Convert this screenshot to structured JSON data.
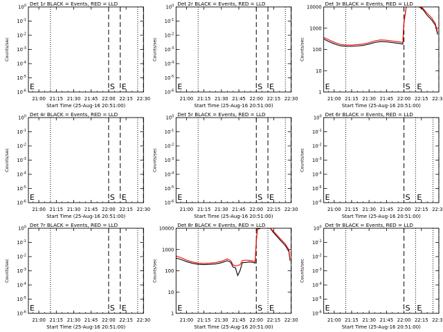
{
  "figure": {
    "bg_color": "#ffffff",
    "axis_color": "#000000",
    "series_colors": {
      "Events": "#000000",
      "LLD": "#ff0000"
    },
    "marker_labels": {
      "start": "S",
      "end": "E"
    }
  },
  "chart_data": [
    {
      "id": 1,
      "type": "line",
      "title": "Det 1r BLACK = Events, RED = LLD",
      "xlabel": "Start Time (25-Aug-16 20:51:00)",
      "ylabel": "Counts/sec",
      "xtick_labels": [
        "21:00",
        "21:15",
        "21:30",
        "21:45",
        "22:00",
        "22:15",
        "22:30"
      ],
      "ytick_labels": [
        "10^0",
        "10^-1",
        "10^-2",
        "10^-3",
        "10^-4",
        "10^-5",
        "10^-6"
      ],
      "ylim": [
        1e-06,
        1
      ],
      "yscale": "log",
      "dotted_lines": [
        "21:10",
        "22:25"
      ],
      "dashed_lines": [
        "22:00",
        "22:10",
        "22:30"
      ],
      "series": []
    },
    {
      "id": 2,
      "type": "line",
      "title": "Det 2r BLACK = Events, RED = LLD",
      "xlabel": "Start Time (25-Aug-16 20:51:00)",
      "ylabel": "Counts/sec",
      "xtick_labels": [
        "21:00",
        "21:15",
        "21:30",
        "21:45",
        "22:00",
        "22:15",
        "22:30"
      ],
      "ytick_labels": [
        "10^0",
        "10^-1",
        "10^-2",
        "10^-3",
        "10^-4",
        "10^-5",
        "10^-6"
      ],
      "ylim": [
        1e-06,
        1
      ],
      "yscale": "log",
      "dotted_lines": [
        "21:10",
        "22:25"
      ],
      "dashed_lines": [
        "22:00",
        "22:10",
        "22:30"
      ],
      "series": []
    },
    {
      "id": 3,
      "type": "line",
      "title": "Det 3r BLACK = Events, RED = LLD",
      "xlabel": "Start Time (25-Aug-16 20:51:00)",
      "ylabel": "Counts/sec",
      "xtick_labels": [
        "21:00",
        "21:15",
        "21:30",
        "21:45",
        "22:00",
        "22:15",
        "22:30"
      ],
      "ytick_labels": [
        "10000",
        "1000",
        "100",
        "10",
        "1"
      ],
      "ylim": [
        1,
        10000
      ],
      "yscale": "log",
      "dotted_lines": [
        "21:10",
        "22:10"
      ],
      "dashed_lines": [
        "22:00",
        "22:30"
      ],
      "series": [
        {
          "color": "#000000",
          "x": [
            "20:51",
            "20:55",
            "21:00",
            "21:05",
            "21:10",
            "21:15",
            "21:20",
            "21:25",
            "21:30",
            "21:35",
            "21:40",
            "21:45",
            "21:50",
            "21:55",
            "21:59",
            "22:00",
            "22:02",
            "22:05",
            "22:08",
            "22:10",
            "22:13",
            "22:16",
            "22:20",
            "22:24",
            "22:27",
            "22:29"
          ],
          "y": [
            310,
            240,
            185,
            150,
            140,
            140,
            145,
            155,
            180,
            215,
            235,
            230,
            210,
            195,
            180,
            1800,
            10000,
            10000,
            10000,
            10000,
            10000,
            8000,
            4000,
            2400,
            1400,
            500
          ]
        },
        {
          "color": "#ff0000",
          "x": [
            "20:51",
            "20:55",
            "21:00",
            "21:05",
            "21:10",
            "21:15",
            "21:20",
            "21:25",
            "21:30",
            "21:35",
            "21:40",
            "21:45",
            "21:50",
            "21:55",
            "21:59",
            "22:00",
            "22:02",
            "22:05",
            "22:08",
            "22:10",
            "22:13",
            "22:16",
            "22:20",
            "22:24",
            "22:27",
            "22:29"
          ],
          "y": [
            370,
            290,
            220,
            175,
            160,
            160,
            170,
            180,
            210,
            255,
            280,
            270,
            250,
            230,
            215,
            2100,
            10000,
            10000,
            10000,
            10000,
            10000,
            9000,
            5000,
            3000,
            1700,
            600
          ]
        }
      ]
    },
    {
      "id": 4,
      "type": "line",
      "title": "Det 4r BLACK = Events, RED = LLD",
      "xlabel": "Start Time (25-Aug-16 20:51:00)",
      "ylabel": "Counts/sec",
      "xtick_labels": [
        "21:00",
        "21:15",
        "21:30",
        "21:45",
        "22:00",
        "22:15",
        "22:30"
      ],
      "ytick_labels": [
        "10^0",
        "10^-1",
        "10^-2",
        "10^-3",
        "10^-4",
        "10^-5",
        "10^-6"
      ],
      "ylim": [
        1e-06,
        1
      ],
      "yscale": "log",
      "dotted_lines": [
        "21:10",
        "22:25"
      ],
      "dashed_lines": [
        "22:00",
        "22:10",
        "22:30"
      ],
      "series": []
    },
    {
      "id": 5,
      "type": "line",
      "title": "Det 5r BLACK = Events, RED = LLD",
      "xlabel": "Start Time (25-Aug-16 20:51:00)",
      "ylabel": "Counts/sec",
      "xtick_labels": [
        "21:00",
        "21:15",
        "21:30",
        "21:45",
        "22:00",
        "22:15",
        "22:30"
      ],
      "ytick_labels": [
        "10^0",
        "10^-1",
        "10^-2",
        "10^-3",
        "10^-4",
        "10^-5",
        "10^-6"
      ],
      "ylim": [
        1e-06,
        1
      ],
      "yscale": "log",
      "dotted_lines": [
        "21:10",
        "22:25"
      ],
      "dashed_lines": [
        "22:00",
        "22:10",
        "22:30"
      ],
      "series": []
    },
    {
      "id": 6,
      "type": "line",
      "title": "Det 6r BLACK = Events, RED = LLD",
      "xlabel": "Start Time (25-Aug-16 20:51:00)",
      "ylabel": "Counts/sec",
      "xtick_labels": [
        "21:00",
        "21:15",
        "21:30",
        "21:45",
        "22:00",
        "22:15",
        "22:30"
      ],
      "ytick_labels": [
        "10^0",
        "10^-1",
        "10^-2",
        "10^-3",
        "10^-4",
        "10^-5",
        "10^-6"
      ],
      "ylim": [
        1e-06,
        1
      ],
      "yscale": "log",
      "dotted_lines": [
        "21:10",
        "22:10",
        "22:25"
      ],
      "dashed_lines": [
        "22:00",
        "22:30"
      ],
      "series": []
    },
    {
      "id": 7,
      "type": "line",
      "title": "Det 7r BLACK = Events, RED = LLD",
      "xlabel": "Start Time (25-Aug-16 20:51:00)",
      "ylabel": "Counts/sec",
      "xtick_labels": [
        "21:00",
        "21:15",
        "21:30",
        "21:45",
        "22:00",
        "22:15",
        "22:30"
      ],
      "ytick_labels": [
        "10^0",
        "10^-1",
        "10^-2",
        "10^-3",
        "10^-4",
        "10^-5",
        "10^-6"
      ],
      "ylim": [
        1e-06,
        1
      ],
      "yscale": "log",
      "dotted_lines": [
        "21:10",
        "22:25"
      ],
      "dashed_lines": [
        "22:00",
        "22:10",
        "22:30"
      ],
      "series": []
    },
    {
      "id": 8,
      "type": "line",
      "title": "Det 8r BLACK = Events, RED = LLD",
      "xlabel": "Start Time (25-Aug-16 20:51:00)",
      "ylabel": "Counts/sec",
      "xtick_labels": [
        "21:00",
        "21:15",
        "21:30",
        "21:45",
        "22:00",
        "22:15",
        "22:30"
      ],
      "ytick_labels": [
        "10000",
        "1000",
        "100",
        "10",
        "1"
      ],
      "ylim": [
        1,
        10000
      ],
      "yscale": "log",
      "dotted_lines": [
        "21:10",
        "22:10"
      ],
      "dashed_lines": [
        "22:00",
        "22:30"
      ],
      "series": [
        {
          "color": "#000000",
          "x": [
            "20:51",
            "20:56",
            "21:00",
            "21:05",
            "21:10",
            "21:15",
            "21:20",
            "21:25",
            "21:30",
            "21:35",
            "21:38",
            "21:40",
            "21:42",
            "21:44",
            "21:46",
            "21:48",
            "21:51",
            "21:54",
            "21:57",
            "21:59",
            "22:00",
            "22:01",
            "22:04",
            "22:07",
            "22:10",
            "22:12",
            "22:15",
            "22:20",
            "22:25",
            "22:28",
            "22:29"
          ],
          "y": [
            400,
            330,
            270,
            225,
            200,
            195,
            200,
            210,
            240,
            300,
            250,
            150,
            140,
            60,
            100,
            240,
            250,
            260,
            250,
            230,
            2400,
            9000,
            10000,
            10000,
            10000,
            10000,
            6000,
            3000,
            1500,
            800,
            300
          ]
        },
        {
          "color": "#ff0000",
          "x": [
            "20:51",
            "20:56",
            "21:00",
            "21:05",
            "21:10",
            "21:15",
            "21:20",
            "21:25",
            "21:30",
            "21:35",
            "21:38",
            "21:40",
            "21:42",
            "21:44",
            "21:46",
            "21:48",
            "21:51",
            "21:54",
            "21:57",
            "21:59",
            "22:00",
            "22:01",
            "22:04",
            "22:07",
            "22:10",
            "22:12",
            "22:15",
            "22:20",
            "22:25",
            "22:28",
            "22:29"
          ],
          "y": [
            500,
            400,
            320,
            260,
            230,
            225,
            230,
            245,
            280,
            360,
            300,
            190,
            170,
            180,
            190,
            300,
            320,
            310,
            290,
            270,
            2800,
            10000,
            10000,
            10000,
            10000,
            10000,
            7000,
            3500,
            1800,
            1000,
            350
          ]
        }
      ]
    },
    {
      "id": 9,
      "type": "line",
      "title": "Det 9r BLACK = Events, RED = LLD",
      "xlabel": "Start Time (25-Aug-16 20:51:00)",
      "ylabel": "Counts/sec",
      "xtick_labels": [
        "21:00",
        "21:15",
        "21:30",
        "21:45",
        "22:00",
        "22:15",
        "22:30"
      ],
      "ytick_labels": [
        "10^0",
        "10^-1",
        "10^-2",
        "10^-3",
        "10^-4",
        "10^-5",
        "10^-6"
      ],
      "ylim": [
        1e-06,
        1
      ],
      "yscale": "log",
      "dotted_lines": [
        "21:10",
        "22:10",
        "22:25"
      ],
      "dashed_lines": [
        "22:00",
        "22:30"
      ],
      "series": []
    }
  ]
}
